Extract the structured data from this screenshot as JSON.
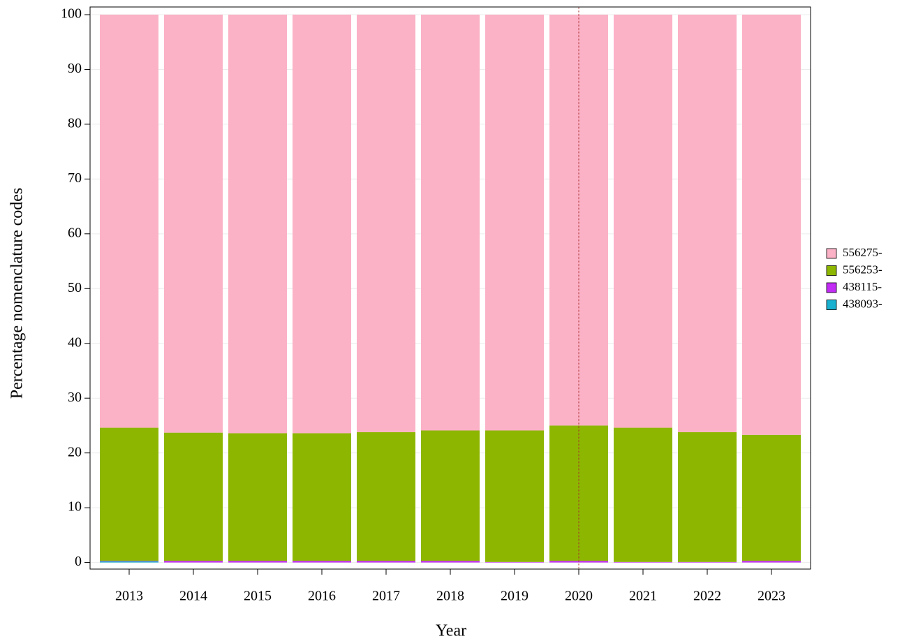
{
  "chart_data": {
    "type": "stacked_bar",
    "x_label": "Year",
    "y_label": "Percentage nomenclature codes",
    "categories": [
      "2013",
      "2014",
      "2015",
      "2016",
      "2017",
      "2018",
      "2019",
      "2020",
      "2021",
      "2022",
      "2023"
    ],
    "series": [
      {
        "name": "438093-",
        "color": "#1ab0d0",
        "values": [
          0.2,
          0,
          0,
          0,
          0,
          0,
          0,
          0,
          0,
          0,
          0
        ]
      },
      {
        "name": "438115-",
        "color": "#c22cf5",
        "values": [
          0.1,
          0.3,
          0.3,
          0.3,
          0.3,
          0.3,
          0.1,
          0.3,
          0.1,
          0.1,
          0.3
        ]
      },
      {
        "name": "556253-",
        "color": "#8db600",
        "values": [
          24.3,
          23.4,
          23.3,
          23.3,
          23.5,
          23.8,
          24.0,
          24.7,
          24.5,
          23.7,
          23.0
        ]
      },
      {
        "name": "556275-",
        "color": "#fbb1c6",
        "values": [
          75.4,
          76.3,
          76.4,
          76.4,
          76.2,
          75.9,
          75.9,
          75.0,
          75.4,
          76.2,
          76.7
        ]
      }
    ],
    "ylim": [
      -1.2,
      101.4
    ],
    "yticks": [
      0,
      10,
      20,
      30,
      40,
      50,
      60,
      70,
      80,
      90,
      100
    ],
    "grid": true,
    "legend": "right",
    "reference_line": {
      "category": "2020",
      "color": "#a52a2a"
    }
  }
}
